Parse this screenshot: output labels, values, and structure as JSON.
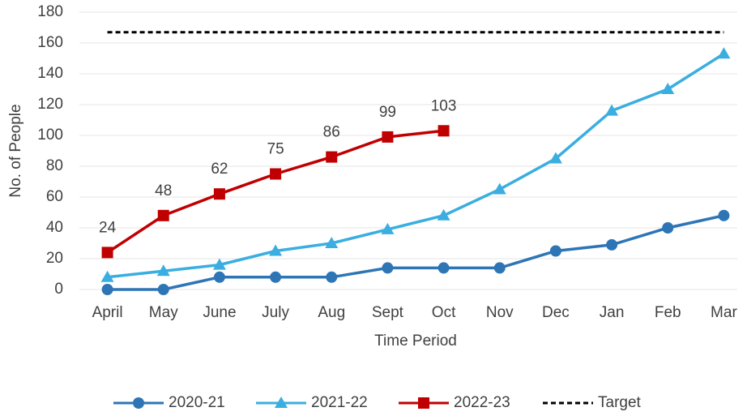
{
  "chart_data": {
    "type": "line",
    "x_label": "Time Period",
    "y_label": "No. of People",
    "categories": [
      "April",
      "May",
      "June",
      "July",
      "Aug",
      "Sept",
      "Oct",
      "Nov",
      "Dec",
      "Jan",
      "Feb",
      "Mar"
    ],
    "series": [
      {
        "name": "2020-21",
        "color": "#2e75b6",
        "marker": "circle",
        "values": [
          0,
          0,
          8,
          8,
          8,
          14,
          14,
          14,
          25,
          29,
          40,
          48
        ]
      },
      {
        "name": "2021-22",
        "color": "#3aaee0",
        "marker": "triangle",
        "values": [
          8,
          12,
          16,
          25,
          30,
          39,
          48,
          65,
          85,
          116,
          130,
          153
        ]
      },
      {
        "name": "2022-23",
        "color": "#c00000",
        "marker": "square",
        "show_labels": true,
        "values": [
          24,
          48,
          62,
          75,
          86,
          99,
          103,
          null,
          null,
          null,
          null,
          null
        ]
      },
      {
        "name": "Target",
        "color": "#000000",
        "dashed": true,
        "values": [
          167,
          167,
          167,
          167,
          167,
          167,
          167,
          167,
          167,
          167,
          167,
          167
        ]
      }
    ],
    "ylim": [
      0,
      180
    ],
    "yticks": [
      0,
      20,
      40,
      60,
      80,
      100,
      120,
      140,
      160,
      180
    ],
    "grid": true,
    "legend": "bottom"
  }
}
